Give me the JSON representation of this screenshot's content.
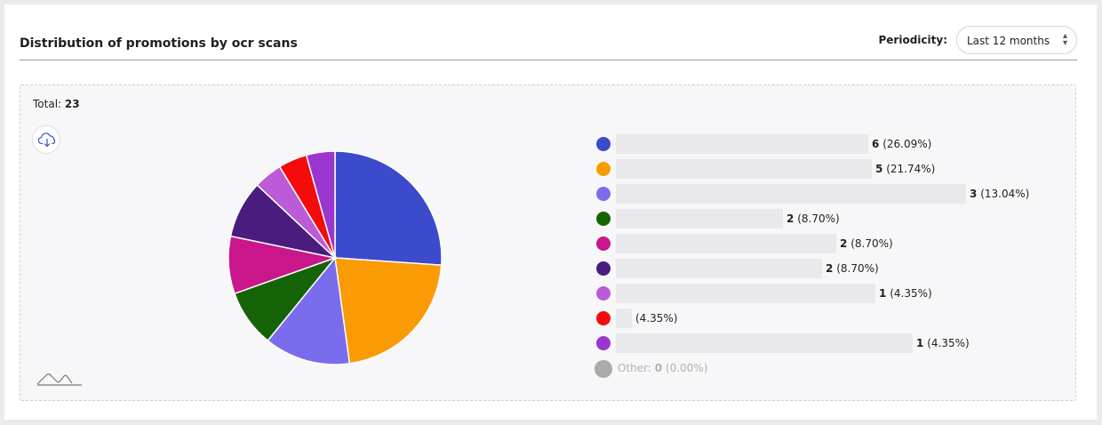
{
  "header": {
    "title": "Distribution of promotions by ocr scans",
    "periodicity_label": "Periodicity:",
    "periodicity_value": "Last 12 months"
  },
  "total": {
    "label": "Total:",
    "value": "23"
  },
  "chart_data": {
    "type": "pie",
    "total": 23,
    "slices": [
      {
        "value": 6,
        "percent": "26.09%",
        "color": "#3b4bcc"
      },
      {
        "value": 5,
        "percent": "21.74%",
        "color": "#fa9b05"
      },
      {
        "value": 3,
        "percent": "13.04%",
        "color": "#7b6cec"
      },
      {
        "value": 2,
        "percent": "8.70%",
        "color": "#156306"
      },
      {
        "value": 2,
        "percent": "8.70%",
        "color": "#c9168a"
      },
      {
        "value": 2,
        "percent": "8.70%",
        "color": "#4a1c7e"
      },
      {
        "value": 1,
        "percent": "4.35%",
        "color": "#bb5bd8"
      },
      {
        "value": 1,
        "percent": "4.35%",
        "color": "#f50b0b"
      },
      {
        "value": 1,
        "percent": "4.35%",
        "color": "#9a36cf"
      }
    ],
    "legend": [
      {
        "count": "6",
        "pct": "(26.09%)"
      },
      {
        "count": "5",
        "pct": "(21.74%)"
      },
      {
        "count": "3",
        "pct": "(13.04%)"
      },
      {
        "count": "2",
        "pct": "(8.70%)"
      },
      {
        "count": "2",
        "pct": "(8.70%)"
      },
      {
        "count": "2",
        "pct": "(8.70%)"
      },
      {
        "count": "1",
        "pct": "(4.35%)"
      },
      {
        "count": "",
        "pct": "(4.35%)"
      },
      {
        "count": "1",
        "pct": "(4.35%)"
      }
    ],
    "other": {
      "label": "Other:",
      "count": "0",
      "pct": "(0.00%)",
      "color": "#aaaaaa"
    }
  }
}
